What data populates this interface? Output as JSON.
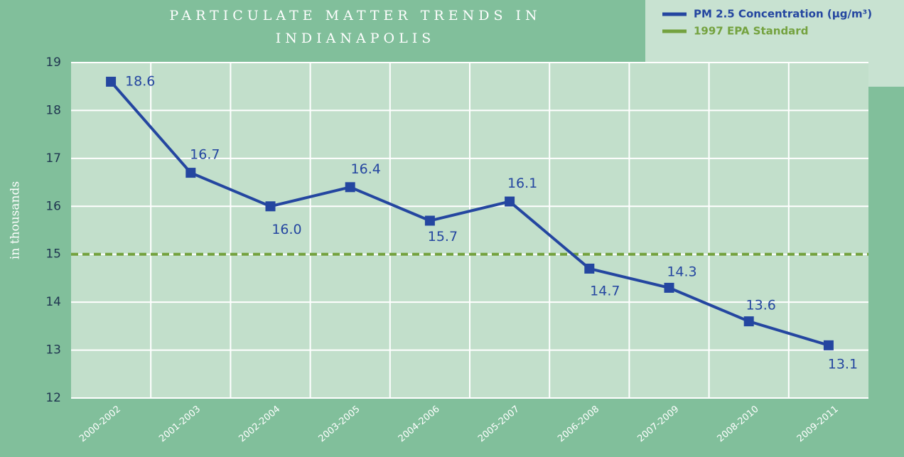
{
  "chart_data": {
    "type": "line",
    "title": "PARTICULATE MATTER TRENDS IN INDIANAPOLIS",
    "y_label": "in thousands",
    "categories": [
      "2000-2002",
      "2001-2003",
      "2002-2004",
      "2003-2005",
      "2004-2006",
      "2005-2007",
      "2006-2008",
      "2007-2009",
      "2008-2010",
      "2009-2011"
    ],
    "series": [
      {
        "name": "PM 2.5 Concentration (µg/m³)",
        "color": "#2446a0",
        "values": [
          18.6,
          16.7,
          16.0,
          16.4,
          15.7,
          16.1,
          14.7,
          14.3,
          13.6,
          13.1
        ],
        "value_labels": [
          "18.6",
          "16.7",
          "16.0",
          "16.4",
          "15.7",
          "16.1",
          "14.7",
          "14.3",
          "13.6",
          "13.1"
        ]
      }
    ],
    "reference_lines": [
      {
        "name": "1997 EPA Standard",
        "value": 15,
        "color": "#74a23f",
        "style": "dashed"
      }
    ],
    "ylim": [
      12,
      19
    ],
    "yticks": [
      12,
      13,
      14,
      15,
      16,
      17,
      18,
      19
    ],
    "grid": true,
    "legend": "top-right"
  }
}
